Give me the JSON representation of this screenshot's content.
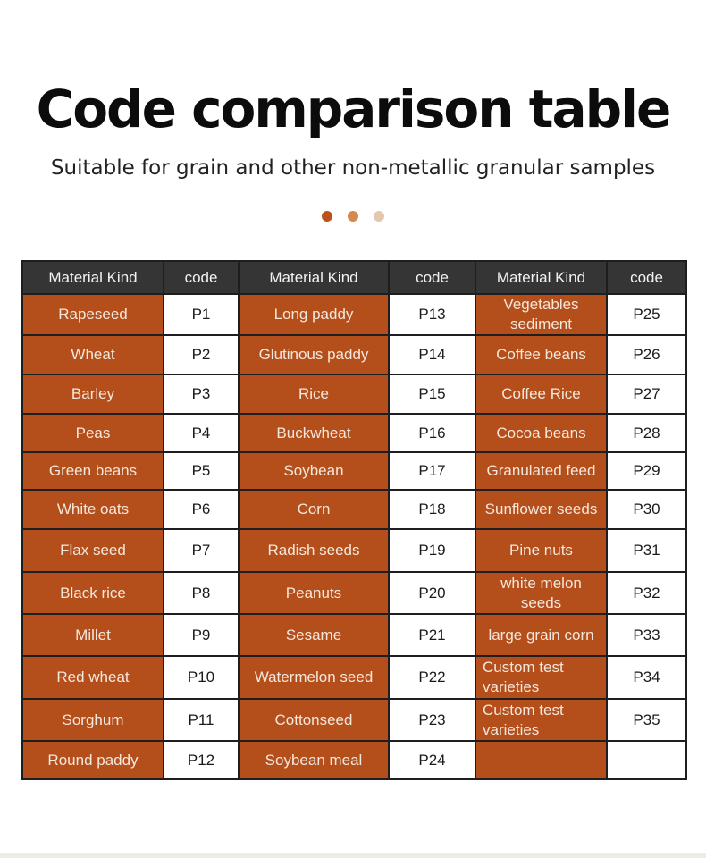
{
  "title": "Code comparison table",
  "subtitle": "Suitable for grain and other non-metallic granular samples",
  "dots": [
    "#b8531c",
    "#d5894f",
    "#e3c8ae"
  ],
  "colors": {
    "header_bg": "#353535",
    "material_bg": "#b44e1a",
    "code_bg": "#ffffff",
    "border": "#1e1e1e"
  },
  "table": {
    "headers": [
      "Material Kind",
      "code",
      "Material Kind",
      "code",
      "Material Kind",
      "code"
    ],
    "rows": [
      [
        "Rapeseed",
        "P1",
        "Long paddy",
        "P13",
        "Vegetables sediment",
        "P25"
      ],
      [
        "Wheat",
        "P2",
        "Glutinous paddy",
        "P14",
        "Coffee beans",
        "P26"
      ],
      [
        "Barley",
        "P3",
        "Rice",
        "P15",
        "Coffee Rice",
        "P27"
      ],
      [
        "Peas",
        "P4",
        "Buckwheat",
        "P16",
        "Cocoa beans",
        "P28"
      ],
      [
        "Green beans",
        "P5",
        "Soybean",
        "P17",
        "Granulated feed",
        "P29"
      ],
      [
        "White oats",
        "P6",
        "Corn",
        "P18",
        "Sunflower seeds",
        "P30"
      ],
      [
        "Flax seed",
        "P7",
        "Radish seeds",
        "P19",
        "Pine nuts",
        "P31"
      ],
      [
        "Black rice",
        "P8",
        "Peanuts",
        "P20",
        "white melon seeds",
        "P32"
      ],
      [
        "Millet",
        "P9",
        "Sesame",
        "P21",
        "large grain corn",
        "P33"
      ],
      [
        "Red wheat",
        "P10",
        "Watermelon seed",
        "P22",
        "Custom test varieties",
        "P34"
      ],
      [
        "Sorghum",
        "P11",
        "Cottonseed",
        "P23",
        "Custom test varieties",
        "P35"
      ],
      [
        "Round paddy",
        "P12",
        "Soybean meal",
        "P24",
        "",
        ""
      ]
    ]
  }
}
